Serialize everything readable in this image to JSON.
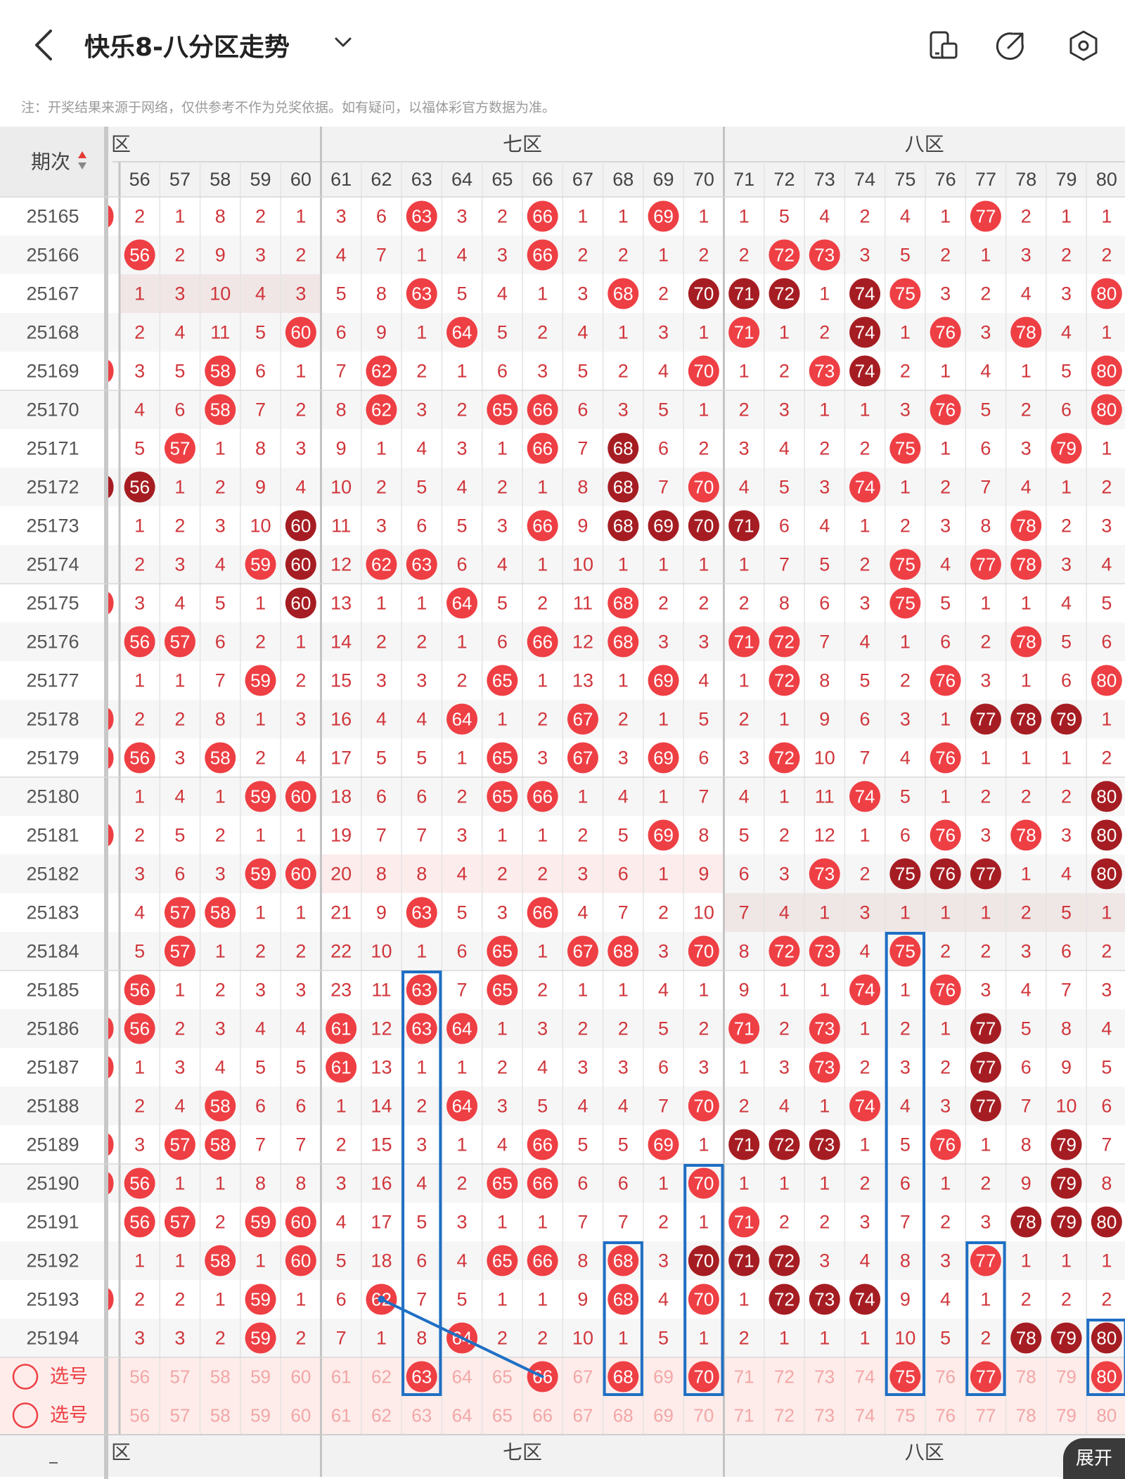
{
  "header": {
    "title": "快乐8-八分区走势",
    "back_icon": "chevron-left-icon",
    "dropdown_icon": "chevron-down-icon",
    "icons": [
      "device-layout-icon",
      "share-icon",
      "settings-hexagon-icon"
    ]
  },
  "note": "注：开奖结果来源于网络，仅供参考不作为兑奖依据。如有疑问，以福体彩官方数据为准。",
  "table": {
    "period_header": "期次",
    "zones": [
      "六区",
      "七区",
      "八区"
    ],
    "visible_zone_labels": [
      "区",
      "七区",
      "八区"
    ],
    "numbers": [
      56,
      57,
      58,
      59,
      60,
      61,
      62,
      63,
      64,
      65,
      66,
      67,
      68,
      69,
      70,
      71,
      72,
      73,
      74,
      75,
      76,
      77,
      78,
      79,
      80
    ],
    "rows": [
      {
        "period": "25165",
        "cells": [
          2,
          1,
          8,
          2,
          1,
          3,
          6,
          "H63",
          3,
          2,
          "H66",
          1,
          1,
          "H69",
          1,
          1,
          5,
          4,
          2,
          4,
          1,
          "H77",
          2,
          1,
          1
        ]
      },
      {
        "period": "25166",
        "cells": [
          "H56",
          2,
          9,
          3,
          2,
          4,
          7,
          1,
          4,
          3,
          "H66",
          2,
          2,
          1,
          2,
          2,
          "H72",
          "H73",
          3,
          5,
          2,
          1,
          3,
          2,
          2
        ]
      },
      {
        "period": "25167",
        "cells": [
          1,
          3,
          10,
          4,
          3,
          5,
          8,
          "H63",
          5,
          4,
          1,
          3,
          "H68",
          2,
          "D70",
          "D71",
          "D72",
          1,
          "D74",
          "H75",
          3,
          2,
          4,
          3,
          "H80"
        ]
      },
      {
        "period": "25168",
        "cells": [
          2,
          4,
          11,
          5,
          "H60",
          6,
          9,
          1,
          "H64",
          5,
          2,
          4,
          1,
          3,
          1,
          "H71",
          1,
          2,
          "D74",
          1,
          "H76",
          3,
          "H78",
          4,
          1
        ]
      },
      {
        "period": "25169",
        "cells": [
          3,
          5,
          "H58",
          6,
          1,
          7,
          "H62",
          2,
          1,
          6,
          3,
          5,
          2,
          4,
          "H70",
          1,
          2,
          "H73",
          "D74",
          2,
          1,
          4,
          1,
          5,
          "H80"
        ]
      },
      {
        "period": "25170",
        "cells": [
          4,
          6,
          "H58",
          7,
          2,
          8,
          "H62",
          3,
          2,
          "H65",
          "H66",
          6,
          3,
          5,
          1,
          2,
          3,
          1,
          1,
          3,
          "H76",
          5,
          2,
          6,
          "H80"
        ]
      },
      {
        "period": "25171",
        "cells": [
          5,
          "H57",
          1,
          8,
          3,
          9,
          1,
          4,
          3,
          1,
          "H66",
          7,
          "D68",
          6,
          2,
          3,
          4,
          2,
          2,
          "H75",
          1,
          6,
          3,
          "H79",
          1
        ]
      },
      {
        "period": "25172",
        "cells": [
          "D56",
          1,
          2,
          9,
          4,
          10,
          2,
          5,
          4,
          2,
          1,
          8,
          "D68",
          7,
          "H70",
          4,
          5,
          3,
          "H74",
          1,
          2,
          7,
          4,
          1,
          2
        ]
      },
      {
        "period": "25173",
        "cells": [
          1,
          2,
          3,
          10,
          "D60",
          11,
          3,
          6,
          5,
          3,
          "H66",
          9,
          "D68",
          "D69",
          "D70",
          "D71",
          6,
          4,
          1,
          2,
          3,
          8,
          "H78",
          2,
          3
        ]
      },
      {
        "period": "25174",
        "cells": [
          2,
          3,
          4,
          "H59",
          "D60",
          12,
          "H62",
          "H63",
          6,
          4,
          1,
          10,
          1,
          1,
          1,
          1,
          7,
          5,
          2,
          "H75",
          4,
          "H77",
          "H78",
          3,
          4
        ]
      },
      {
        "period": "25175",
        "cells": [
          3,
          4,
          5,
          1,
          "D60",
          13,
          1,
          1,
          "H64",
          5,
          2,
          11,
          "H68",
          2,
          2,
          2,
          8,
          6,
          3,
          "H75",
          5,
          1,
          1,
          4,
          5
        ]
      },
      {
        "period": "25176",
        "cells": [
          "H56",
          "H57",
          6,
          2,
          1,
          14,
          2,
          2,
          1,
          6,
          "H66",
          12,
          "H68",
          3,
          3,
          "H71",
          "H72",
          7,
          4,
          1,
          6,
          2,
          "H78",
          5,
          6
        ]
      },
      {
        "period": "25177",
        "cells": [
          1,
          1,
          7,
          "H59",
          2,
          15,
          3,
          3,
          2,
          "H65",
          1,
          13,
          1,
          "H69",
          4,
          1,
          "H72",
          8,
          5,
          2,
          "H76",
          3,
          1,
          6,
          "H80"
        ]
      },
      {
        "period": "25178",
        "cells": [
          2,
          2,
          8,
          1,
          3,
          16,
          4,
          4,
          "H64",
          1,
          2,
          "H67",
          2,
          1,
          5,
          2,
          1,
          9,
          6,
          3,
          1,
          "D77",
          "D78",
          "D79",
          1
        ]
      },
      {
        "period": "25179",
        "cells": [
          "H56",
          3,
          "H58",
          2,
          4,
          17,
          5,
          5,
          1,
          "H65",
          3,
          "H67",
          3,
          "H69",
          6,
          3,
          "H72",
          10,
          7,
          4,
          "H76",
          1,
          1,
          1,
          2
        ]
      },
      {
        "period": "25180",
        "cells": [
          1,
          4,
          1,
          "H59",
          "H60",
          18,
          6,
          6,
          2,
          "H65",
          "H66",
          1,
          4,
          1,
          7,
          4,
          1,
          11,
          "H74",
          5,
          1,
          2,
          2,
          2,
          "D80"
        ]
      },
      {
        "period": "25181",
        "cells": [
          2,
          5,
          2,
          1,
          1,
          19,
          7,
          7,
          3,
          1,
          1,
          2,
          5,
          "H69",
          8,
          5,
          2,
          12,
          1,
          6,
          "H76",
          3,
          "H78",
          3,
          "D80"
        ]
      },
      {
        "period": "25182",
        "cells": [
          3,
          6,
          3,
          "H59",
          "H60",
          20,
          8,
          8,
          4,
          2,
          2,
          3,
          6,
          1,
          9,
          6,
          3,
          "H73",
          2,
          "D75",
          "D76",
          "D77",
          1,
          4,
          "D80"
        ]
      },
      {
        "period": "25183",
        "cells": [
          4,
          "H57",
          "H58",
          1,
          1,
          21,
          9,
          "H63",
          5,
          3,
          "H66",
          4,
          7,
          2,
          10,
          7,
          4,
          1,
          3,
          1,
          1,
          1,
          2,
          5,
          1
        ]
      },
      {
        "period": "25184",
        "cells": [
          5,
          "H57",
          1,
          2,
          2,
          22,
          10,
          1,
          6,
          "H65",
          1,
          "H67",
          "H68",
          3,
          "H70",
          8,
          "H72",
          "H73",
          4,
          "H75",
          2,
          2,
          3,
          6,
          2
        ]
      },
      {
        "period": "25185",
        "cells": [
          "H56",
          1,
          2,
          3,
          3,
          23,
          11,
          "H63",
          7,
          "H65",
          2,
          1,
          1,
          4,
          1,
          9,
          1,
          1,
          "H74",
          1,
          "H76",
          3,
          4,
          7,
          3
        ]
      },
      {
        "period": "25186",
        "cells": [
          "H56",
          2,
          3,
          4,
          4,
          "H61",
          12,
          "H63",
          "H64",
          1,
          3,
          2,
          2,
          5,
          2,
          "H71",
          2,
          "H73",
          1,
          2,
          1,
          "D77",
          5,
          8,
          4
        ]
      },
      {
        "period": "25187",
        "cells": [
          1,
          3,
          4,
          5,
          5,
          "H61",
          13,
          1,
          1,
          2,
          4,
          3,
          3,
          6,
          3,
          1,
          3,
          "H73",
          2,
          3,
          2,
          "D77",
          6,
          9,
          5
        ]
      },
      {
        "period": "25188",
        "cells": [
          2,
          4,
          "H58",
          6,
          6,
          1,
          14,
          2,
          "H64",
          3,
          5,
          4,
          4,
          7,
          "H70",
          2,
          4,
          1,
          "H74",
          4,
          3,
          "D77",
          7,
          10,
          6
        ]
      },
      {
        "period": "25189",
        "cells": [
          3,
          "H57",
          "H58",
          7,
          7,
          2,
          15,
          3,
          1,
          4,
          "H66",
          5,
          5,
          "H69",
          1,
          "D71",
          "D72",
          "D73",
          1,
          5,
          "H76",
          1,
          8,
          "D79",
          7
        ]
      },
      {
        "period": "25190",
        "cells": [
          "H56",
          1,
          1,
          8,
          8,
          3,
          16,
          4,
          2,
          "H65",
          "H66",
          6,
          6,
          1,
          "H70",
          1,
          1,
          1,
          2,
          6,
          1,
          2,
          9,
          "D79",
          8
        ]
      },
      {
        "period": "25191",
        "cells": [
          "H56",
          "H57",
          2,
          "H59",
          "H60",
          4,
          17,
          5,
          3,
          1,
          1,
          7,
          7,
          2,
          1,
          "H71",
          2,
          2,
          3,
          7,
          2,
          3,
          "D78",
          "D79",
          "D80"
        ]
      },
      {
        "period": "25192",
        "cells": [
          1,
          1,
          "H58",
          1,
          "H60",
          5,
          18,
          6,
          4,
          "H65",
          "H66",
          8,
          "H68",
          3,
          "D70",
          "D71",
          "D72",
          3,
          4,
          8,
          3,
          "H77",
          1,
          1,
          1
        ]
      },
      {
        "period": "25193",
        "cells": [
          2,
          2,
          1,
          "H59",
          1,
          6,
          "H62",
          7,
          5,
          1,
          1,
          9,
          "H68",
          4,
          "H70",
          1,
          "D72",
          "D73",
          "D74",
          9,
          4,
          1,
          2,
          2,
          2
        ]
      },
      {
        "period": "25194",
        "cells": [
          3,
          3,
          2,
          "H59",
          2,
          7,
          1,
          8,
          "H64",
          2,
          2,
          10,
          1,
          5,
          1,
          2,
          1,
          1,
          1,
          10,
          5,
          2,
          "D78",
          "D79",
          "D80"
        ]
      }
    ],
    "select_label": "选号",
    "select_rows": [
      {
        "selected": [
          63,
          66,
          68,
          70,
          75,
          77,
          80
        ]
      },
      {
        "selected": []
      }
    ],
    "expand_label": "展开"
  },
  "colors": {
    "hit": "#ee3f44",
    "repeat_hit": "#a51d22",
    "miss_text": "#d0363b",
    "highlight_box": "#1f6fc4",
    "zone_header_bg": "#eeeeee",
    "select_bg": "#fdecea"
  },
  "annotations": {
    "boxes": [
      {
        "number": 63,
        "from": "25185",
        "to": "select-1"
      },
      {
        "number": 68,
        "from": "25192",
        "to": "select-1"
      },
      {
        "number": 70,
        "from": "25190",
        "to": "select-1"
      },
      {
        "number": 75,
        "from": "25184",
        "to": "select-1"
      },
      {
        "number": 77,
        "from": "25192",
        "to": "select-1"
      },
      {
        "number": 80,
        "from": "25194",
        "to": "select-1"
      }
    ],
    "line": {
      "from_number": 62,
      "from_row": "25193",
      "to_number": 66,
      "to_row": "select-1"
    }
  }
}
